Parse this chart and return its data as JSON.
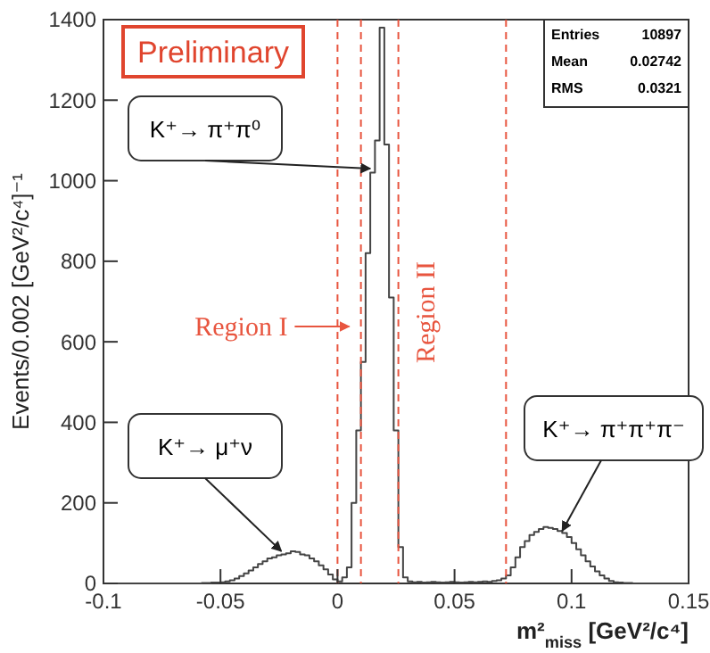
{
  "chart_data": {
    "type": "histogram",
    "xlabel": "m²$_{miss}$  [GeV²/c⁴]",
    "ylabel": "Events/0.002  [GeV²/c⁴]⁻¹",
    "bins": [
      -0.1,
      -0.098,
      -0.096,
      -0.094,
      -0.092,
      -0.09,
      -0.088,
      -0.086,
      -0.084,
      -0.082,
      -0.08,
      -0.078,
      -0.076,
      -0.074,
      -0.072,
      -0.07,
      -0.068,
      -0.066,
      -0.064,
      -0.062,
      -0.06,
      -0.058,
      -0.056,
      -0.054,
      -0.052,
      -0.05,
      -0.048,
      -0.046,
      -0.044,
      -0.042,
      -0.04,
      -0.038,
      -0.036,
      -0.034,
      -0.032,
      -0.03,
      -0.028,
      -0.026,
      -0.024,
      -0.022,
      -0.02,
      -0.018,
      -0.016,
      -0.014,
      -0.012,
      -0.01,
      -0.008,
      -0.006,
      -0.004,
      -0.002,
      0,
      0.002,
      0.004,
      0.006,
      0.008,
      0.01,
      0.012,
      0.014,
      0.016,
      0.018,
      0.02,
      0.022,
      0.024,
      0.026,
      0.028,
      0.03,
      0.032,
      0.034,
      0.036,
      0.038,
      0.04,
      0.042,
      0.044,
      0.046,
      0.048,
      0.05,
      0.052,
      0.054,
      0.056,
      0.058,
      0.06,
      0.062,
      0.064,
      0.066,
      0.068,
      0.07,
      0.072,
      0.074,
      0.076,
      0.078,
      0.08,
      0.082,
      0.084,
      0.086,
      0.088,
      0.09,
      0.092,
      0.094,
      0.096,
      0.098,
      0.1,
      0.102,
      0.104,
      0.106,
      0.108,
      0.11,
      0.112,
      0.114,
      0.116,
      0.118,
      0.12,
      0.122,
      0.124,
      0.126,
      0.128,
      0.13,
      0.132,
      0.134,
      0.136,
      0.138,
      0.14,
      0.142,
      0.144,
      0.146,
      0.148,
      0.15
    ],
    "values": [
      0,
      0,
      0,
      0,
      0,
      0,
      0,
      0,
      0,
      0,
      0,
      0,
      0,
      0,
      0,
      0,
      0,
      0,
      0,
      0,
      0,
      1,
      1,
      2,
      2,
      3,
      5,
      8,
      12,
      18,
      25,
      32,
      40,
      48,
      55,
      62,
      65,
      70,
      72,
      75,
      80,
      78,
      72,
      70,
      62,
      55,
      45,
      35,
      22,
      10,
      5,
      15,
      40,
      200,
      380,
      550,
      820,
      1020,
      1100,
      1380,
      1090,
      710,
      380,
      90,
      15,
      5,
      3,
      4,
      2,
      3,
      4,
      3,
      2,
      3,
      4,
      3,
      2,
      3,
      4,
      3,
      4,
      5,
      4,
      6,
      8,
      12,
      20,
      40,
      65,
      90,
      105,
      120,
      128,
      135,
      140,
      138,
      135,
      130,
      125,
      115,
      100,
      85,
      70,
      55,
      42,
      30,
      20,
      12,
      6,
      3,
      2,
      1,
      1,
      0,
      0,
      0,
      0,
      0,
      0,
      0,
      0,
      0,
      0,
      0,
      0
    ],
    "color": "#444444",
    "xlim": [
      -0.1,
      0.15
    ],
    "xticks": [
      -0.1,
      -0.05,
      0,
      0.05,
      0.1,
      0.15
    ],
    "ylim": [
      0,
      1400
    ],
    "yticks": [
      0,
      200,
      400,
      600,
      800,
      1000,
      1200,
      1400
    ],
    "ref_lines": [
      {
        "axis": "x",
        "value": 0,
        "color": "#e8553f",
        "line_style": "dashed"
      },
      {
        "axis": "x",
        "value": 0.01,
        "color": "#e8553f",
        "line_style": "dashed"
      },
      {
        "axis": "x",
        "value": 0.026,
        "color": "#e8553f",
        "line_style": "dashed"
      },
      {
        "axis": "x",
        "value": 0.072,
        "color": "#e8553f",
        "line_style": "dashed"
      }
    ],
    "annotations": [
      "Preliminary",
      "Entries 10897",
      "Mean 0.02742",
      "RMS 0.0321",
      "Region I",
      "Region II",
      {
        "text": "K⁺→ π⁺π⁰",
        "x": 0.014,
        "y": 1030
      },
      {
        "text": "K⁺→ μ⁺ν",
        "x": -0.024,
        "y": 80
      },
      {
        "text": "K⁺→ π⁺π⁺π⁻",
        "x": 0.096,
        "y": 130
      }
    ]
  }
}
